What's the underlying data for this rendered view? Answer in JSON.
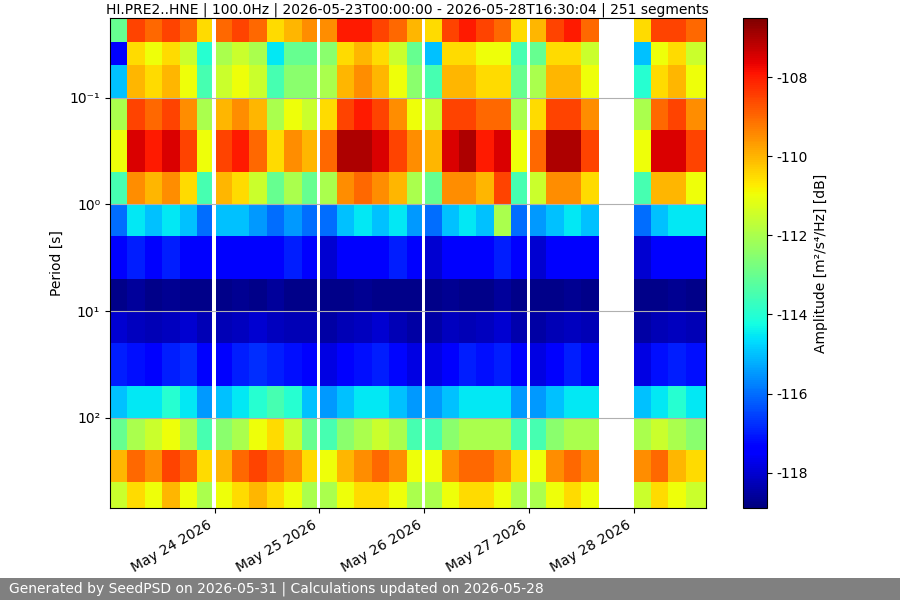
{
  "chart_data": {
    "type": "heatmap",
    "title": "HI.PRE2..HNE | 100.0Hz | 2026-05-23T00:00:00 - 2026-05-28T16:30:04 | 251 segments",
    "y_label": "Period [s]",
    "footer": "Generated by SeedPSD on 2026-05-31 | Calculations updated on 2026-05-28",
    "log": "y",
    "grid": "y",
    "color": "jet",
    "xlim": [
      "2026-05-23T00:00",
      "2026-05-28T16:30"
    ],
    "xticks": [
      {
        "value": "2026-05-24T00:00",
        "label": "May 24 2026"
      },
      {
        "value": "2026-05-25T00:00",
        "label": "May 25 2026"
      },
      {
        "value": "2026-05-26T00:00",
        "label": "May 26 2026"
      },
      {
        "value": "2026-05-27T00:00",
        "label": "May 27 2026"
      },
      {
        "value": "2026-05-28T00:00",
        "label": "May 28 2026"
      }
    ],
    "ylim": [
      700,
      0.018
    ],
    "yticks": [
      {
        "value": 0.1,
        "label": "10⁻¹"
      },
      {
        "value": 1,
        "label": "10⁰"
      },
      {
        "value": 10,
        "label": "10¹"
      },
      {
        "value": 100,
        "label": "10²"
      }
    ],
    "x_edges": [
      "2026-05-23T00:00",
      "2026-05-23T04:00",
      "2026-05-23T08:00",
      "2026-05-23T12:00",
      "2026-05-23T16:00",
      "2026-05-23T20:00",
      "2026-05-23T23:30",
      "2026-05-24T00:15",
      "2026-05-24T04:00",
      "2026-05-24T08:00",
      "2026-05-24T12:00",
      "2026-05-24T16:00",
      "2026-05-24T20:00",
      "2026-05-24T23:30",
      "2026-05-25T00:15",
      "2026-05-25T04:00",
      "2026-05-25T08:00",
      "2026-05-25T12:00",
      "2026-05-25T16:00",
      "2026-05-25T20:00",
      "2026-05-25T23:30",
      "2026-05-26T00:15",
      "2026-05-26T04:00",
      "2026-05-26T08:00",
      "2026-05-26T12:00",
      "2026-05-26T16:00",
      "2026-05-26T20:00",
      "2026-05-26T23:30",
      "2026-05-27T00:15",
      "2026-05-27T04:00",
      "2026-05-27T08:00",
      "2026-05-27T12:00",
      "2026-05-27T16:00",
      "2026-05-28T00:00",
      "2026-05-28T04:00",
      "2026-05-28T08:00",
      "2026-05-28T12:00",
      "2026-05-28T16:30"
    ],
    "period_edges": [
      0.018,
      0.03,
      0.05,
      0.1,
      0.2,
      0.5,
      1,
      2,
      5,
      10,
      20,
      50,
      100,
      200,
      400,
      700
    ],
    "cells": [
      [
        -113,
        -108.5,
        -109,
        -108.5,
        -109,
        -110.5,
        null,
        -109,
        -108.5,
        -109,
        -110.5,
        -110,
        -109.5,
        null,
        -109.5,
        -108,
        -108,
        -108.5,
        -109,
        -110,
        null,
        -110.5,
        -108.5,
        -108,
        -108.5,
        -109,
        -110.5,
        null,
        -110,
        -108.5,
        -108,
        -109,
        null,
        -110.5,
        -108.5,
        -108.5,
        -109
      ],
      [
        -117.5,
        -110.5,
        -111,
        -110.5,
        -111.5,
        -114,
        null,
        -112,
        -111.5,
        -112,
        -114.5,
        -113,
        -113,
        null,
        -112.5,
        -110.5,
        -110,
        -110.5,
        -111.5,
        -113,
        null,
        -115,
        -110.5,
        -110.5,
        -111,
        -111,
        -113.5,
        null,
        -113,
        -110.5,
        -110.5,
        -111.5,
        null,
        -115,
        -111,
        -110.5,
        -111.5
      ],
      [
        -115,
        -110,
        -110.5,
        -110,
        -111,
        -113.5,
        null,
        -111.5,
        -111,
        -111.5,
        -113.5,
        -112.5,
        -112.5,
        null,
        -112,
        -110,
        -109.5,
        -110,
        -111,
        -112.5,
        null,
        -113.5,
        -110,
        -110,
        -110.5,
        -110.5,
        -113,
        null,
        -112,
        -110,
        -110,
        -111,
        null,
        -114,
        -110.5,
        -110,
        -111
      ],
      [
        -112,
        -108.5,
        -109,
        -108.5,
        -109.5,
        -112,
        null,
        -110,
        -109.5,
        -110,
        -112,
        -111,
        -111.5,
        null,
        -110.5,
        -108.5,
        -108,
        -108.5,
        -109.5,
        -111,
        null,
        -111.5,
        -108.5,
        -108.5,
        -109,
        -109,
        -112,
        null,
        -110.5,
        -108.5,
        -108.5,
        -109.5,
        null,
        -112,
        -109,
        -108.5,
        -109.5
      ],
      [
        -111,
        -107.5,
        -108,
        -107.5,
        -108.5,
        -111,
        null,
        -108.5,
        -108,
        -109,
        -110.5,
        -109.5,
        -110,
        null,
        -109,
        -107,
        -107,
        -107.5,
        -108.5,
        -109.5,
        null,
        -110,
        -107.5,
        -107,
        -108,
        -107.5,
        -111,
        null,
        -109,
        -107,
        -107,
        -108.5,
        null,
        -111,
        -107.5,
        -107.5,
        -108.5
      ],
      [
        -113.5,
        -109.5,
        -110,
        -109.5,
        -110.5,
        -113.5,
        null,
        -110,
        -110.5,
        -111.5,
        -113,
        -112,
        -113,
        null,
        -112,
        -109.5,
        -109,
        -109.5,
        -110,
        -112,
        null,
        -113,
        -109.5,
        -109.5,
        -110,
        -108.5,
        -113.5,
        null,
        -111.5,
        -109.5,
        -109.5,
        -110.5,
        null,
        -113.5,
        -110,
        -110,
        -111
      ],
      [
        -116,
        -114.5,
        -115,
        -114.5,
        -115,
        -116,
        null,
        -115,
        -115,
        -115.5,
        -116,
        -115.5,
        -116,
        null,
        -116,
        -115,
        -114.5,
        -115,
        -114.5,
        -115.5,
        null,
        -116,
        -115,
        -114.5,
        -115,
        -112,
        -116,
        null,
        -115.5,
        -115,
        -114.5,
        -115,
        null,
        -116,
        -115,
        -114.5,
        -114.5
      ],
      [
        -117.5,
        -117,
        -117.5,
        -117,
        -117.5,
        -117.5,
        null,
        -117.5,
        -117.5,
        -117.5,
        -117.5,
        -117,
        -117.5,
        null,
        -118,
        -117.5,
        -117.5,
        -117.5,
        -117,
        -117.5,
        null,
        -118,
        -117.5,
        -117.5,
        -117.5,
        -117,
        -117.5,
        null,
        -118,
        -117.5,
        -117.5,
        -117.5,
        null,
        -118,
        -117.5,
        -117.5,
        -117.5
      ],
      [
        -118.8,
        -118.6,
        -118.8,
        -118.7,
        -118.8,
        -118.8,
        null,
        -118.8,
        -118.7,
        -118.8,
        -118.6,
        -118.8,
        -118.8,
        null,
        -118.8,
        -118.8,
        -118.7,
        -118.8,
        -118.8,
        -118.8,
        null,
        -118.8,
        -118.7,
        -118.8,
        -118.8,
        -118.6,
        -118.8,
        null,
        -118.8,
        -118.8,
        -118.7,
        -118.8,
        null,
        -118.8,
        -118.8,
        -118.7,
        -118.8
      ],
      [
        -118,
        -118.2,
        -118.3,
        -118.2,
        -118,
        -118.3,
        null,
        -118.3,
        -118.2,
        -118,
        -118.2,
        -118.3,
        -118.3,
        null,
        -118.5,
        -118.3,
        -118.2,
        -118,
        -118.3,
        -118.5,
        null,
        -118.5,
        -118.2,
        -118.3,
        -118.2,
        -118,
        -118.4,
        null,
        -118.5,
        -118.3,
        -118.2,
        -118.3,
        null,
        -118.5,
        -118.3,
        -118.2,
        -118.3
      ],
      [
        -117,
        -117.2,
        -117.5,
        -117,
        -116.8,
        -117.5,
        null,
        -117.5,
        -117,
        -116.8,
        -117,
        -117.2,
        -117.5,
        null,
        -117.8,
        -117.5,
        -117.2,
        -117,
        -117.3,
        -117.8,
        null,
        -117.8,
        -117.5,
        -117,
        -117.2,
        -117,
        -117.5,
        null,
        -117.8,
        -117.5,
        -117,
        -117.3,
        null,
        -117.8,
        -117.2,
        -117,
        -117.2
      ],
      [
        -115,
        -114.5,
        -114.5,
        -114,
        -114.5,
        -115.5,
        null,
        -115,
        -114.5,
        -114,
        -113.5,
        -114,
        -115,
        null,
        -115.5,
        -115,
        -114.5,
        -114.5,
        -115,
        -115.5,
        null,
        -115.5,
        -115,
        -114.5,
        -114.5,
        -114.5,
        -115.5,
        null,
        -115.5,
        -115,
        -114.5,
        -114.5,
        null,
        -115,
        -114.5,
        -114,
        -114.5
      ],
      [
        -113,
        -112,
        -111.5,
        -111,
        -112,
        -113.5,
        null,
        -112.5,
        -112,
        -111,
        -110.5,
        -111.5,
        -113,
        null,
        -113.5,
        -112.5,
        -112,
        -111.5,
        -112,
        -113.5,
        null,
        -113.5,
        -112.5,
        -112,
        -112,
        -112,
        -113.5,
        null,
        -113.5,
        -112.5,
        -112,
        -112,
        null,
        -112,
        -111.5,
        -112,
        -112.5
      ],
      [
        -110,
        -109,
        -109.5,
        -108.5,
        -109,
        -110.5,
        null,
        -110,
        -109,
        -108.5,
        -109,
        -109.5,
        -110.5,
        null,
        -111,
        -110,
        -109.5,
        -109,
        -109.5,
        -111,
        null,
        -111,
        -109.5,
        -109,
        -109,
        -109.5,
        -110.5,
        null,
        -111,
        -109.5,
        -109,
        -109.5,
        null,
        -109.5,
        -109,
        -110,
        -110.5
      ],
      [
        -111.5,
        -110.5,
        -111,
        -110,
        -111,
        -112,
        null,
        -111,
        -110.5,
        -110,
        -110.5,
        -111,
        -112,
        null,
        -112,
        -111,
        -110.5,
        -110.5,
        -111,
        -112,
        null,
        -112,
        -111,
        -110.5,
        -110.5,
        -111,
        -112,
        null,
        -112,
        -111,
        -110.5,
        -111,
        null,
        -111.5,
        -110.5,
        -111,
        -111.5
      ]
    ],
    "colorbar": {
      "label": "Amplitude [m²/s⁴/Hz] [dB]",
      "range": [
        -118.9,
        -106.5
      ],
      "ticks": [
        -118,
        -116,
        -114,
        -112,
        -110,
        -108
      ]
    }
  }
}
